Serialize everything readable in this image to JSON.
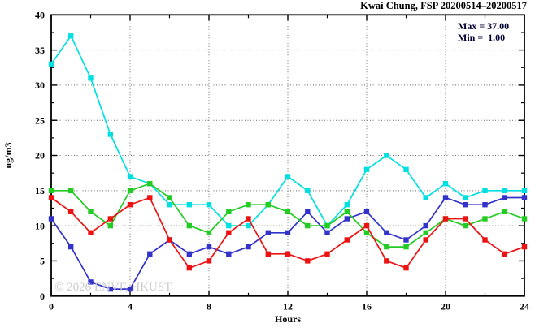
{
  "chart_data": {
    "type": "line",
    "title": "Kwai Chung, FSP 20200514–20200517",
    "xlabel": "Hours",
    "ylabel": "ug/m3",
    "xlim": [
      0,
      24
    ],
    "ylim": [
      0,
      40
    ],
    "x_major_ticks": [
      0,
      4,
      8,
      12,
      16,
      20,
      24
    ],
    "x_minor_step": 2,
    "y_major_ticks": [
      0,
      5,
      10,
      15,
      20,
      25,
      30,
      35,
      40
    ],
    "y_minor_step": 2.5,
    "grid": true,
    "grid_x_lines": [
      4,
      8,
      12,
      16,
      20
    ],
    "grid_y_lines": [
      5,
      10,
      15,
      20,
      25,
      30,
      35
    ],
    "x": [
      0,
      1,
      2,
      3,
      4,
      5,
      6,
      7,
      8,
      9,
      10,
      11,
      12,
      13,
      14,
      15,
      16,
      17,
      18,
      19,
      20,
      21,
      22,
      23,
      24
    ],
    "series": [
      {
        "name": "cyan",
        "color": "#00e0e0",
        "values": [
          33,
          37,
          31,
          23,
          17,
          16,
          13,
          13,
          13,
          10,
          10,
          13,
          17,
          15,
          10,
          13,
          18,
          20,
          18,
          14,
          16,
          14,
          15,
          15,
          15
        ]
      },
      {
        "name": "blue",
        "color": "#3333cc",
        "values": [
          11,
          7,
          2,
          1,
          1,
          6,
          8,
          6,
          7,
          6,
          7,
          9,
          9,
          12,
          9,
          11,
          12,
          9,
          8,
          10,
          14,
          13,
          13,
          14,
          14
        ]
      },
      {
        "name": "green",
        "color": "#22cc22",
        "values": [
          15,
          15,
          12,
          10,
          15,
          16,
          14,
          10,
          9,
          12,
          13,
          13,
          12,
          10,
          10,
          12,
          9,
          7,
          7,
          9,
          11,
          10,
          11,
          12,
          11
        ]
      },
      {
        "name": "red",
        "color": "#ee1111",
        "values": [
          14,
          12,
          9,
          11,
          13,
          14,
          8,
          4,
          5,
          9,
          11,
          6,
          6,
          5,
          6,
          8,
          10,
          5,
          4,
          8,
          11,
          11,
          8,
          6,
          7
        ]
      }
    ],
    "annotations": {
      "max_label": "Max = 37.00",
      "min_label": "Min =  1.00"
    },
    "watermark": "© 2026 ENVF, HKUST",
    "legend_position": "top-right-inside",
    "axis_color": "#000000",
    "grid_color": "#666666"
  }
}
